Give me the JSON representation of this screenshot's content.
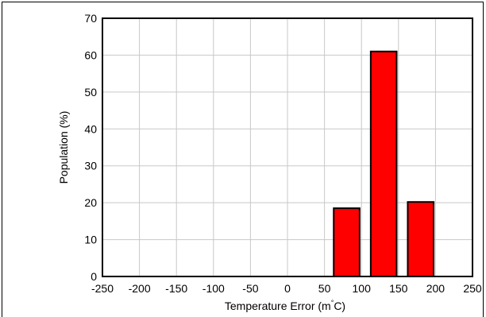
{
  "chart_data": {
    "type": "bar",
    "xlabel": "Temperature Error (m°C)",
    "xlabel_parts": {
      "pre": "Temperature Error (m",
      "sup": "°",
      "post": "C)"
    },
    "ylabel": "Population (%)",
    "xlim": [
      -250,
      250
    ],
    "ylim": [
      0,
      70
    ],
    "xticks": [
      "-250",
      "-200",
      "-150",
      "-100",
      "-50",
      "0",
      "50",
      "100",
      "150",
      "200",
      "250"
    ],
    "yticks": [
      "0",
      "10",
      "20",
      "30",
      "40",
      "50",
      "60",
      "70"
    ],
    "grid": true,
    "bar_color": "#ff0000",
    "bars": [
      {
        "x0": 62.5,
        "x1": 97.5,
        "value": 18.5
      },
      {
        "x0": 112.5,
        "x1": 147.5,
        "value": 61
      },
      {
        "x0": 162.5,
        "x1": 197.5,
        "value": 20.2
      }
    ]
  }
}
